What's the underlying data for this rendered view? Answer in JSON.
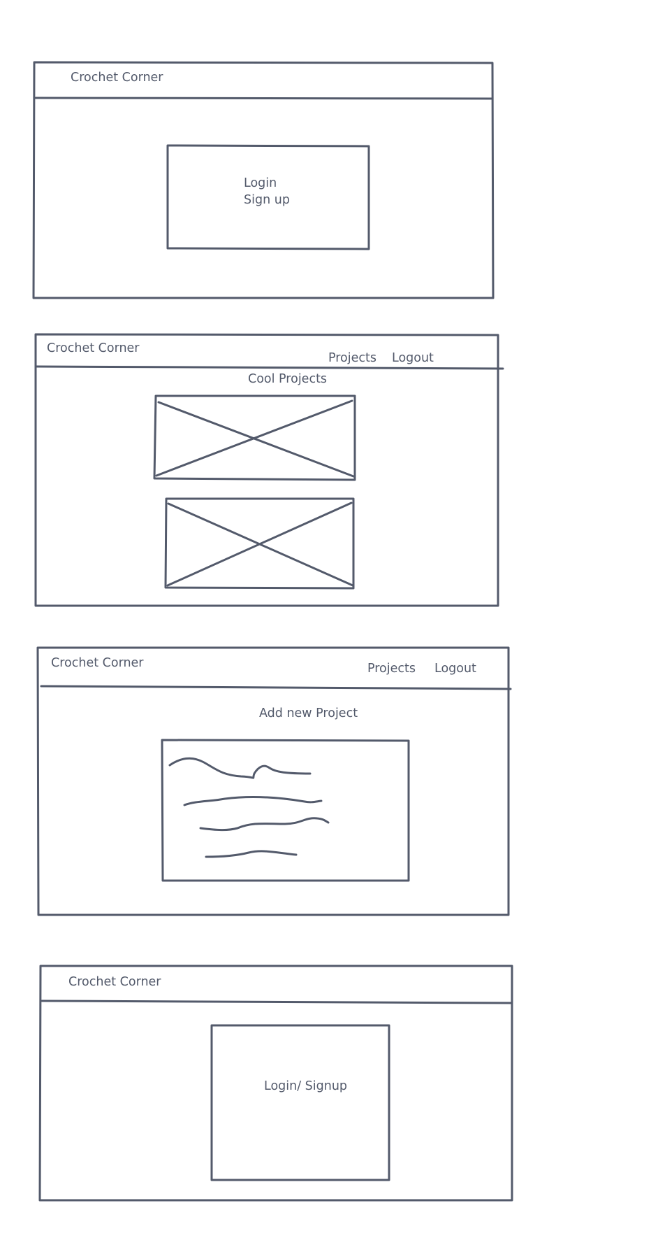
{
  "palette": {
    "stroke": "#535a6b",
    "background": "#ffffff"
  },
  "frames": [
    {
      "id": "frame-login-start",
      "brand": "Crochet Corner",
      "panel": {
        "lines": [
          "Login",
          "Sign up"
        ]
      }
    },
    {
      "id": "frame-projects-list",
      "brand": "Crochet Corner",
      "nav": [
        "Projects",
        "Logout"
      ],
      "heading": "Cool Projects",
      "image_placeholders": 2
    },
    {
      "id": "frame-add-project",
      "brand": "Crochet Corner",
      "nav": [
        "Projects",
        "Logout"
      ],
      "heading": "Add new Project",
      "form_placeholder_lines": 4
    },
    {
      "id": "frame-login-signup",
      "brand": "Crochet Corner",
      "panel": {
        "label": "Login/ Signup"
      }
    }
  ]
}
